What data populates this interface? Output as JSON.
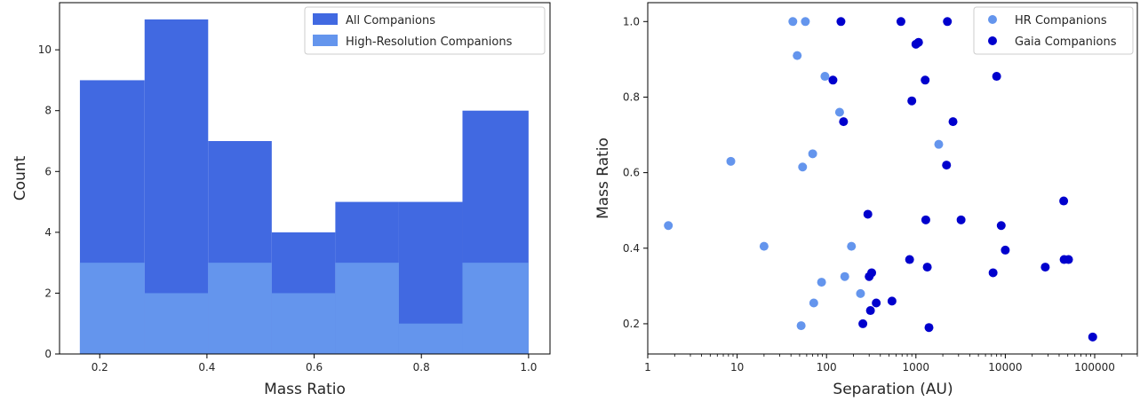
{
  "chart_data": [
    {
      "type": "bar",
      "subtype": "histogram",
      "xlabel": "Mass Ratio",
      "ylabel": "Count",
      "xlim": [
        0.125,
        1.04
      ],
      "ylim": [
        0,
        11.55
      ],
      "bin_edges": [
        0.163,
        0.2837,
        0.4023,
        0.5209,
        0.6395,
        0.7581,
        0.8767,
        1.0
      ],
      "series": [
        {
          "name": "All Companions",
          "color": "#4169e1",
          "values": [
            9,
            11,
            7,
            4,
            5,
            5,
            8
          ]
        },
        {
          "name": "High-Resolution Companions",
          "color": "#6495ed",
          "values": [
            3,
            2,
            3,
            2,
            3,
            1,
            3
          ]
        }
      ],
      "x_ticks": [
        0.2,
        0.4,
        0.6,
        0.8,
        1.0
      ],
      "x_tick_labels": [
        "0.2",
        "0.4",
        "0.6",
        "0.8",
        "1.0"
      ],
      "y_ticks": [
        0,
        2,
        4,
        6,
        8,
        10
      ],
      "y_tick_labels": [
        "0",
        "2",
        "4",
        "6",
        "8",
        "10"
      ],
      "legend_position": "top-right"
    },
    {
      "type": "scatter",
      "xlabel": "Separation (AU)",
      "ylabel": "Mass Ratio",
      "x_scale": "log",
      "xlim": [
        1,
        300000
      ],
      "ylim": [
        0.12,
        1.05
      ],
      "x_ticks": [
        1,
        10,
        100,
        1000,
        10000,
        100000
      ],
      "x_tick_labels": [
        "1",
        "10",
        "100",
        "1000",
        "10000",
        "100000"
      ],
      "y_ticks": [
        0.2,
        0.4,
        0.6,
        0.8,
        1.0
      ],
      "y_tick_labels": [
        "0.2",
        "0.4",
        "0.6",
        "0.8",
        "1.0"
      ],
      "legend_position": "top-right",
      "series": [
        {
          "name": "HR Companions",
          "color": "#6495ed",
          "points": [
            [
              1.7,
              0.46
            ],
            [
              8.5,
              0.63
            ],
            [
              20,
              0.405
            ],
            [
              42,
              1.0
            ],
            [
              47,
              0.91
            ],
            [
              52,
              0.195
            ],
            [
              54,
              0.615
            ],
            [
              58,
              1.0
            ],
            [
              70,
              0.65
            ],
            [
              72,
              0.255
            ],
            [
              88,
              0.31
            ],
            [
              96,
              0.855
            ],
            [
              140,
              0.76
            ],
            [
              160,
              0.325
            ],
            [
              190,
              0.405
            ],
            [
              240,
              0.28
            ],
            [
              1800,
              0.675
            ]
          ]
        },
        {
          "name": "Gaia Companions",
          "color": "#0000cd",
          "points": [
            [
              118,
              0.845
            ],
            [
              145,
              1.0
            ],
            [
              155,
              0.735
            ],
            [
              255,
              0.2
            ],
            [
              290,
              0.49
            ],
            [
              300,
              0.325
            ],
            [
              310,
              0.235
            ],
            [
              320,
              0.335
            ],
            [
              360,
              0.255
            ],
            [
              540,
              0.26
            ],
            [
              680,
              1.0
            ],
            [
              850,
              0.37
            ],
            [
              900,
              0.79
            ],
            [
              1000,
              0.94
            ],
            [
              1070,
              0.945
            ],
            [
              1270,
              0.845
            ],
            [
              1290,
              0.475
            ],
            [
              1340,
              0.35
            ],
            [
              1400,
              0.19
            ],
            [
              2200,
              0.62
            ],
            [
              2250,
              1.0
            ],
            [
              2600,
              0.735
            ],
            [
              3200,
              0.475
            ],
            [
              7300,
              0.335
            ],
            [
              8000,
              0.855
            ],
            [
              9000,
              0.46
            ],
            [
              10000,
              0.395
            ],
            [
              28000,
              0.35
            ],
            [
              45000,
              0.525
            ],
            [
              45500,
              0.37
            ],
            [
              51000,
              0.37
            ],
            [
              95000,
              0.165
            ]
          ]
        }
      ]
    }
  ]
}
